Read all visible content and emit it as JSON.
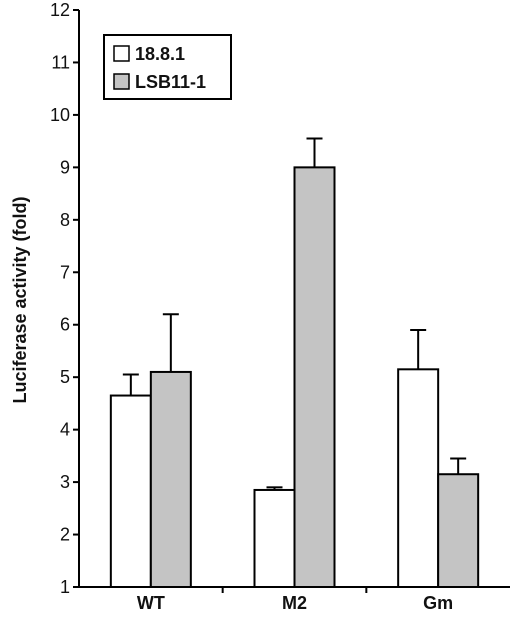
{
  "chart_data": {
    "type": "bar",
    "categories": [
      "WT",
      "M2",
      "Gm"
    ],
    "series": [
      {
        "name": "18.8.1",
        "values": [
          4.65,
          2.85,
          5.15
        ],
        "errors": [
          0.4,
          0.05,
          0.75
        ],
        "color": "#ffffff"
      },
      {
        "name": "LSB11-1",
        "values": [
          5.1,
          9.0,
          3.15
        ],
        "errors": [
          1.1,
          0.55,
          0.3
        ],
        "color": "#c4c4c4"
      }
    ],
    "title": "",
    "xlabel": "",
    "ylabel": "Luciferase activity (fold)",
    "ylim": [
      1,
      12
    ],
    "yticks": [
      1,
      2,
      3,
      4,
      5,
      6,
      7,
      8,
      9,
      10,
      11,
      12
    ],
    "grid": false,
    "legend": "top-left"
  }
}
